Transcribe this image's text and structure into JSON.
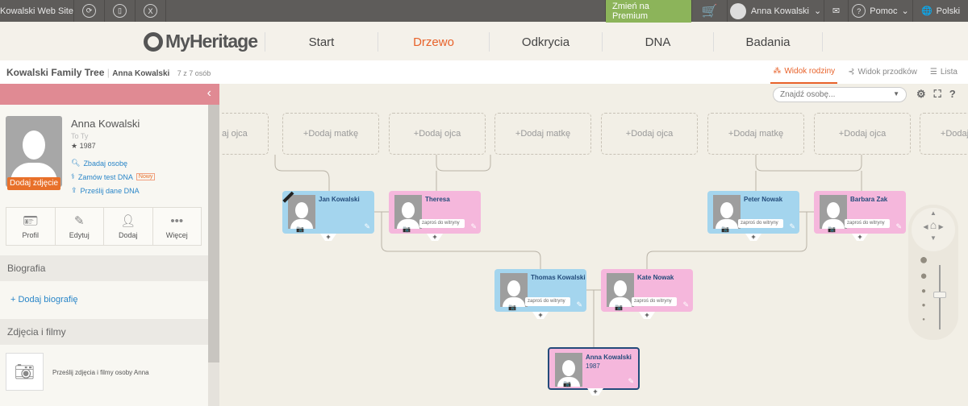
{
  "topbar": {
    "site": "Kowalski Web Site",
    "premium": "Zmień na Premium",
    "user": "Anna Kowalski",
    "help": "Pomoc",
    "language": "Polski"
  },
  "nav": {
    "logo": "MyHeritage",
    "items": [
      {
        "label": "Start"
      },
      {
        "label": "Drzewo",
        "active": true
      },
      {
        "label": "Odkrycia"
      },
      {
        "label": "DNA"
      },
      {
        "label": "Badania"
      }
    ]
  },
  "subbar": {
    "tree": "Kowalski Family Tree",
    "person": "Anna Kowalski",
    "count": "7 z 7 osób",
    "views": [
      "Widok rodziny",
      "Widok przodków",
      "Lista"
    ]
  },
  "search": {
    "placeholder": "Znajdź osobę..."
  },
  "panel": {
    "name": "Anna Kowalski",
    "relation": "To Ty",
    "birth": "1987",
    "add_photo": "Dodaj zdjęcie",
    "links": [
      "Zbadaj osobę",
      "Zamów test DNA",
      "Prześlij dane DNA"
    ],
    "new_badge": "Nowy",
    "actions": [
      "Profil",
      "Edytuj",
      "Dodaj",
      "Więcej"
    ],
    "bio_title": "Biografia",
    "bio_add": "+ Dodaj biografię",
    "photos_title": "Zdjęcia i filmy",
    "photos_text": "Prześlij zdjęcia i filmy osoby Anna"
  },
  "tree": {
    "add_father": "+Dodaj ojca",
    "add_mother": "+Dodaj matkę",
    "add_father_cut": "aj ojca",
    "invite": "zaproś do witryny",
    "people": [
      {
        "name": "Jan Kowalski"
      },
      {
        "name": "Theresa"
      },
      {
        "name": "Peter Nowak"
      },
      {
        "name": "Barbara Zak"
      },
      {
        "name": "Thomas Kowalski"
      },
      {
        "name": "Kate Nowak"
      },
      {
        "name": "Anna Kowalski",
        "year": "1987"
      }
    ]
  },
  "colors": {
    "accent": "#e8622a",
    "male": "#a4d5ee",
    "female": "#f5b7dc",
    "premium": "#8cb45a",
    "panel_header": "#e08a93"
  }
}
